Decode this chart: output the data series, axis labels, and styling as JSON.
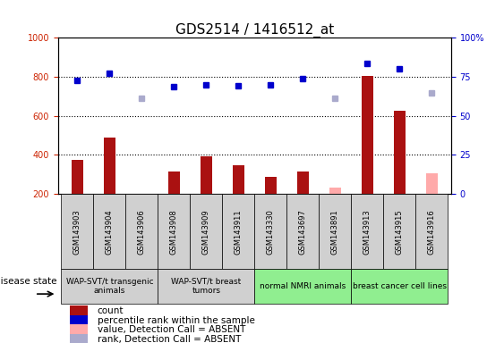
{
  "title": "GDS2514 / 1416512_at",
  "samples": [
    "GSM143903",
    "GSM143904",
    "GSM143906",
    "GSM143908",
    "GSM143909",
    "GSM143911",
    "GSM143330",
    "GSM143697",
    "GSM143891",
    "GSM143913",
    "GSM143915",
    "GSM143916"
  ],
  "count_values": [
    375,
    490,
    null,
    315,
    390,
    345,
    285,
    315,
    null,
    805,
    625,
    null
  ],
  "count_absent": [
    null,
    null,
    195,
    null,
    null,
    null,
    null,
    null,
    230,
    null,
    null,
    305
  ],
  "rank_values": [
    780,
    820,
    null,
    750,
    760,
    755,
    760,
    790,
    null,
    870,
    840,
    null
  ],
  "rank_absent": [
    null,
    null,
    690,
    null,
    null,
    null,
    null,
    null,
    690,
    null,
    null,
    715
  ],
  "ylim_left": [
    200,
    1000
  ],
  "ylim_right": [
    0,
    100
  ],
  "yticks_left": [
    200,
    400,
    600,
    800,
    1000
  ],
  "yticks_right": [
    0,
    25,
    50,
    75,
    100
  ],
  "hlines": [
    400,
    600,
    800
  ],
  "groups": [
    {
      "label": "WAP-SVT/t transgenic\nanimals",
      "start": 0,
      "end": 3,
      "color": "#d0d0d0"
    },
    {
      "label": "WAP-SVT/t breast\ntumors",
      "start": 3,
      "end": 6,
      "color": "#d0d0d0"
    },
    {
      "label": "normal NMRI animals",
      "start": 6,
      "end": 9,
      "color": "#90ee90"
    },
    {
      "label": "breast cancer cell lines",
      "start": 9,
      "end": 12,
      "color": "#90ee90"
    }
  ],
  "bar_width": 0.35,
  "bar_color_count": "#aa1111",
  "bar_color_absent": "#ffaaaa",
  "marker_color_rank": "#0000cc",
  "marker_color_rank_absent": "#aaaacc",
  "title_fontsize": 11,
  "axis_label_color_left": "#cc2200",
  "axis_label_color_right": "#0000cc",
  "rank_scale_factor": 10.0
}
